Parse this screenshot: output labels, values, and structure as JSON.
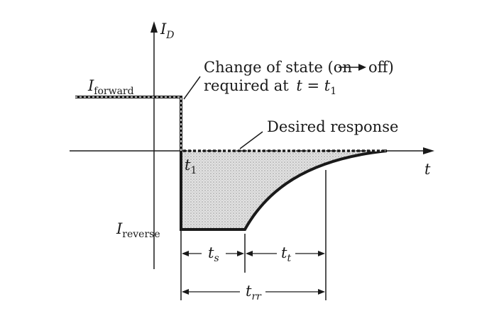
{
  "axes": {
    "y_symbol": "I",
    "y_subscript": "D",
    "x_symbol": "t"
  },
  "levels": {
    "forward_symbol": "I",
    "forward_subscript": "forward",
    "reverse_symbol": "I",
    "reverse_subscript": "reverse"
  },
  "annotations": {
    "change_line1_pre": "Change of state (on",
    "change_line1_post": "off)",
    "change_line2_pre": "required at",
    "change_line2_t": "t",
    "change_line2_eq": " = ",
    "change_line2_t1": "t",
    "change_line2_t1_sub": "1",
    "desired": "Desired response"
  },
  "time_labels": {
    "t1_symbol": "t",
    "t1_sub": "1",
    "ts_symbol": "t",
    "ts_sub": "s",
    "tt_symbol": "t",
    "tt_sub": "t",
    "trr_symbol": "t",
    "trr_sub": "rr"
  },
  "colors": {
    "ink": "#1a1a1a",
    "shade": "#d0d0d0"
  }
}
